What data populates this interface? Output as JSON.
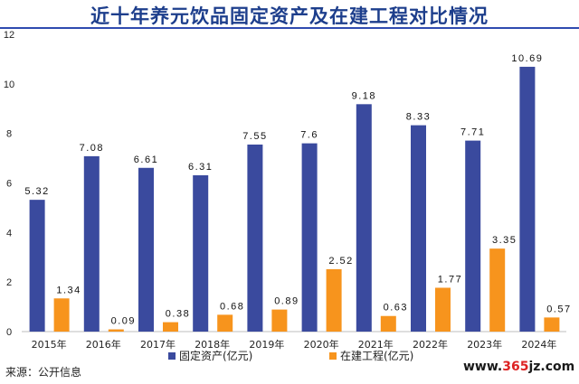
{
  "title": "近十年养元饮品固定资产及在建工程对比情况",
  "source": "来源：公开信息",
  "watermark": {
    "prefix": "www.",
    "accent": "365",
    "suffix": "jz.com"
  },
  "colors": {
    "fixed": "#3a4a9e",
    "construction": "#f7941d",
    "axis": "#333333",
    "grid": "#e3e3e3"
  },
  "chart_data": {
    "type": "bar",
    "title": "近十年养元饮品固定资产及在建工程对比情况",
    "xlabel": "",
    "ylabel": "",
    "categories": [
      "2015年",
      "2016年",
      "2017年",
      "2018年",
      "2019年",
      "2020年",
      "2021年",
      "2022年",
      "2023年",
      "2024年"
    ],
    "series": [
      {
        "name": "固定资产(亿元)",
        "values": [
          5.32,
          7.08,
          6.61,
          6.31,
          7.55,
          7.6,
          9.18,
          8.33,
          7.71,
          10.69
        ],
        "labels": [
          "5.32",
          "7.08",
          "6.61",
          "6.31",
          "7.55",
          "7.6",
          "9.18",
          "8.33",
          "7.71",
          "10.69"
        ]
      },
      {
        "name": "在建工程(亿元)",
        "values": [
          1.34,
          0.09,
          0.38,
          0.68,
          0.89,
          2.52,
          0.63,
          1.77,
          3.35,
          0.57
        ],
        "labels": [
          "1.34",
          "0.09",
          "0.38",
          "0.68",
          "0.89",
          "2.52",
          "0.63",
          "1.77",
          "3.35",
          "0.57"
        ]
      }
    ],
    "ylim": [
      0,
      12
    ],
    "yticks": [
      0,
      2,
      4,
      6,
      8,
      10,
      12
    ],
    "grid": false,
    "legend": "bottom-center"
  }
}
